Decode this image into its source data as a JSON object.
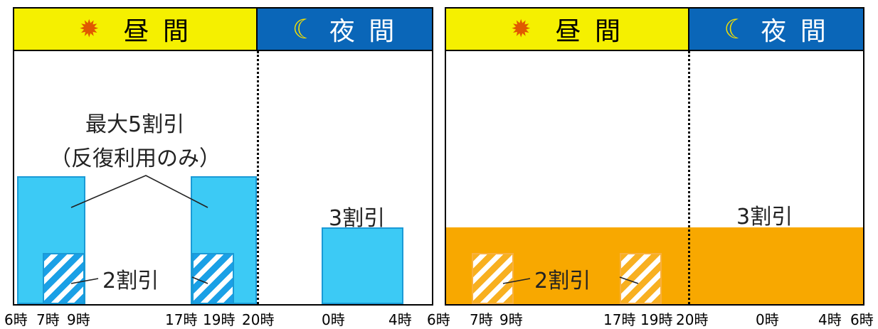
{
  "left_panel": {
    "header": {
      "day_label": "昼 間",
      "night_label": "夜 間",
      "sun_icon": "sun-icon",
      "moon_icon": "crescent-moon-icon"
    },
    "callout_line1": "最大5割引",
    "callout_line2": "（反復利用のみ）",
    "two_discount": "2割引",
    "three_discount": "3割引"
  },
  "right_panel": {
    "header": {
      "day_label": "昼 間",
      "night_label": "夜 間",
      "sun_icon": "sun-icon",
      "moon_icon": "crescent-moon-icon"
    },
    "two_discount": "2割引",
    "three_discount": "3割引"
  },
  "axis_labels": {
    "l1": "6時",
    "l2": "7時",
    "l3": "9時",
    "l4": "17時",
    "l5": "19時",
    "l6": "20時",
    "l7": "0時",
    "l8": "4時",
    "l9": "6時",
    "r2": "7時",
    "r3": "9時",
    "r4": "17時",
    "r5": "19時",
    "r6": "20時",
    "r7": "0時",
    "r8": "4時",
    "r9": "6時"
  },
  "colors": {
    "day_header": "#f5f000",
    "night_header": "#0a66b8",
    "blue_bar": "#3ccaf5",
    "orange_bar": "#f8a800"
  }
}
